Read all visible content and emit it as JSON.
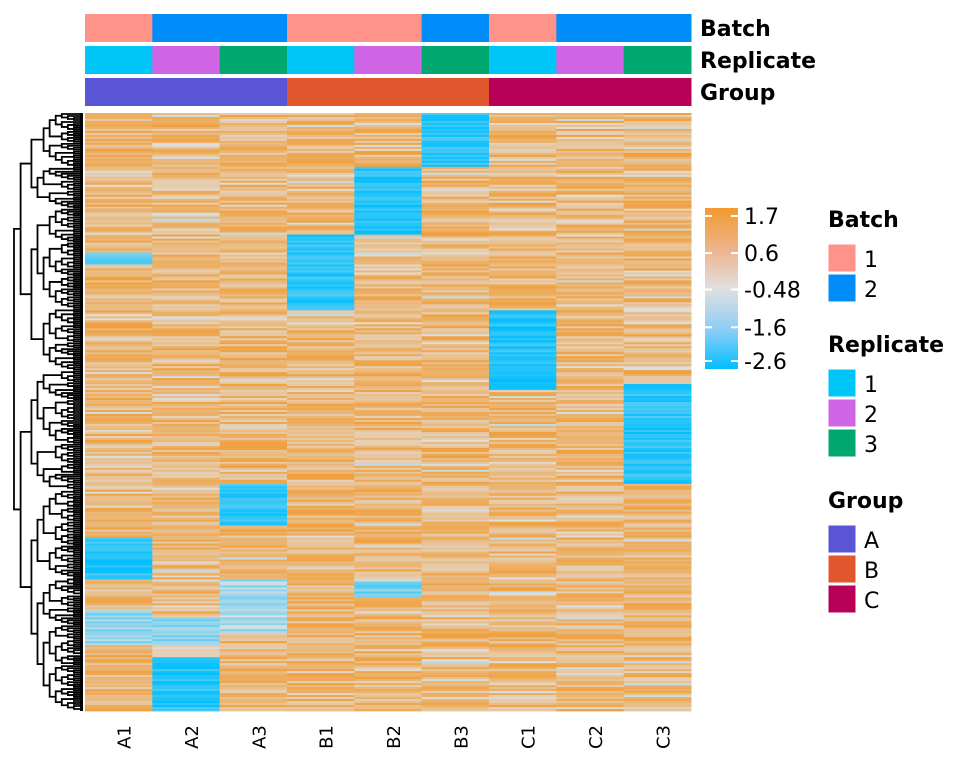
{
  "chart_data": {
    "type": "heatmap",
    "title": "",
    "columns": [
      "A1",
      "A2",
      "A3",
      "B1",
      "B2",
      "B3",
      "C1",
      "C2",
      "C3"
    ],
    "n_rows": 300,
    "row_dendrogram": true,
    "color_scale": {
      "min": -2.6,
      "max": 1.7,
      "ticks": [
        1.7,
        0.6,
        -0.48,
        -1.6,
        -2.6
      ],
      "tick_labels": [
        "1.7",
        "0.6",
        "-0.48",
        "-1.6",
        "-2.6"
      ],
      "low_color": "#00BFFF",
      "mid_color": "#E0E0E0",
      "high_color": "#F29A2E"
    },
    "column_annotations": [
      {
        "name": "Batch",
        "values": [
          "1",
          "2",
          "2",
          "1",
          "1",
          "2",
          "1",
          "2",
          "2"
        ],
        "levels": [
          {
            "label": "1",
            "color": "#FF9289"
          },
          {
            "label": "2",
            "color": "#008DF9"
          }
        ]
      },
      {
        "name": "Replicate",
        "values": [
          "1",
          "2",
          "3",
          "1",
          "2",
          "3",
          "1",
          "2",
          "3"
        ],
        "levels": [
          {
            "label": "1",
            "color": "#00C6F8"
          },
          {
            "label": "2",
            "color": "#CF64E5"
          },
          {
            "label": "3",
            "color": "#00A76F"
          }
        ]
      },
      {
        "name": "Group",
        "values": [
          "A",
          "A",
          "A",
          "B",
          "B",
          "B",
          "C",
          "C",
          "C"
        ],
        "levels": [
          {
            "label": "A",
            "color": "#5A55D6"
          },
          {
            "label": "B",
            "color": "#E1562C"
          },
          {
            "label": "C",
            "color": "#B80058"
          }
        ]
      }
    ],
    "low_value_blocks": [
      {
        "column": "B3",
        "row_start": 0.0,
        "row_end": 0.09,
        "value": -2.3
      },
      {
        "column": "B2",
        "row_start": 0.09,
        "row_end": 0.205,
        "value": -2.4
      },
      {
        "column": "B1",
        "row_start": 0.205,
        "row_end": 0.33,
        "value": -2.3
      },
      {
        "column": "C1",
        "row_start": 0.33,
        "row_end": 0.465,
        "value": -2.4
      },
      {
        "column": "C3",
        "row_start": 0.455,
        "row_end": 0.62,
        "value": -2.3
      },
      {
        "column": "A3",
        "row_start": 0.62,
        "row_end": 0.69,
        "value": -2.2
      },
      {
        "column": "A1",
        "row_start": 0.71,
        "row_end": 0.78,
        "value": -2.3
      },
      {
        "column": "A1",
        "row_start": 0.235,
        "row_end": 0.255,
        "value": -1.6
      },
      {
        "column": "A1",
        "row_start": 0.83,
        "row_end": 0.89,
        "value": -1.3
      },
      {
        "column": "A2",
        "row_start": 0.845,
        "row_end": 0.89,
        "value": -1.4
      },
      {
        "column": "A3",
        "row_start": 0.78,
        "row_end": 0.87,
        "value": -1.1
      },
      {
        "column": "A2",
        "row_start": 0.91,
        "row_end": 1.0,
        "value": -2.4
      },
      {
        "column": "B2",
        "row_start": 0.785,
        "row_end": 0.81,
        "value": -1.6
      }
    ],
    "background_value_mean": 0.7,
    "xlabel": "",
    "ylabel": ""
  },
  "legends": {
    "colorbar_title": "",
    "sections": [
      {
        "title": "Batch",
        "items": [
          {
            "label": "1",
            "color": "#FF9289"
          },
          {
            "label": "2",
            "color": "#008DF9"
          }
        ]
      },
      {
        "title": "Replicate",
        "items": [
          {
            "label": "1",
            "color": "#00C6F8"
          },
          {
            "label": "2",
            "color": "#CF64E5"
          },
          {
            "label": "3",
            "color": "#00A76F"
          }
        ]
      },
      {
        "title": "Group",
        "items": [
          {
            "label": "A",
            "color": "#5A55D6"
          },
          {
            "label": "B",
            "color": "#E1562C"
          },
          {
            "label": "C",
            "color": "#B80058"
          }
        ]
      }
    ]
  }
}
